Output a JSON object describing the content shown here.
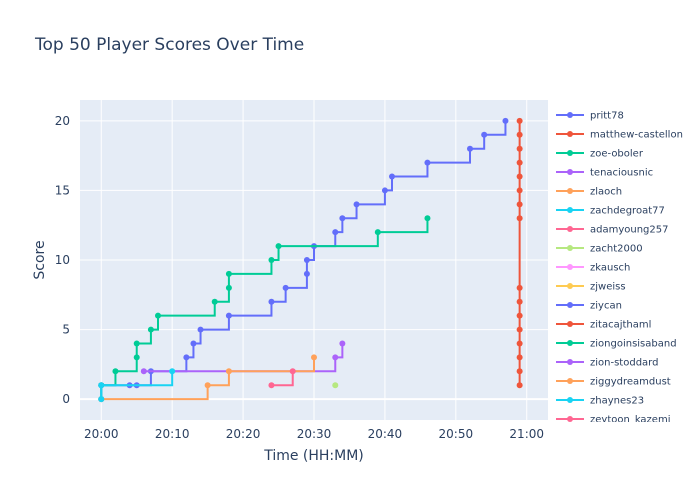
{
  "chart_data": {
    "type": "line",
    "line_shape": "step",
    "title": "Top 50 Player Scores Over Time",
    "xlabel": "Time (HH:MM)",
    "ylabel": "Score",
    "xlim": [
      "19:57",
      "21:03"
    ],
    "ylim": [
      -1.5,
      21.5
    ],
    "x_ticks": [
      "20:00",
      "20:10",
      "20:20",
      "20:30",
      "20:40",
      "20:50",
      "21:00"
    ],
    "y_ticks": [
      0,
      5,
      10,
      15,
      20
    ],
    "grid": true,
    "legend_position": "right",
    "series": [
      {
        "name": "pritt78",
        "color": "#636efa",
        "points": [
          [
            "20:00",
            0
          ],
          [
            "20:00",
            1
          ],
          [
            "20:04",
            1
          ],
          [
            "20:05",
            1
          ],
          [
            "20:07",
            2
          ],
          [
            "20:12",
            3
          ],
          [
            "20:13",
            4
          ],
          [
            "20:14",
            5
          ],
          [
            "20:18",
            6
          ],
          [
            "20:24",
            7
          ],
          [
            "20:26",
            8
          ],
          [
            "20:29",
            9
          ],
          [
            "20:29",
            10
          ],
          [
            "20:30",
            11
          ],
          [
            "20:33",
            12
          ],
          [
            "20:34",
            13
          ],
          [
            "20:36",
            14
          ],
          [
            "20:40",
            15
          ],
          [
            "20:41",
            16
          ],
          [
            "20:46",
            17
          ],
          [
            "20:52",
            18
          ],
          [
            "20:54",
            19
          ],
          [
            "20:57",
            20
          ]
        ]
      },
      {
        "name": "matthew-castellon",
        "color": "#ef553b",
        "points": [
          [
            "20:59",
            1
          ],
          [
            "20:59",
            2
          ],
          [
            "20:59",
            3
          ],
          [
            "20:59",
            4
          ],
          [
            "20:59",
            5
          ],
          [
            "20:59",
            6
          ],
          [
            "20:59",
            7
          ],
          [
            "20:59",
            8
          ],
          [
            "20:59",
            13
          ],
          [
            "20:59",
            14
          ],
          [
            "20:59",
            15
          ],
          [
            "20:59",
            16
          ],
          [
            "20:59",
            17
          ],
          [
            "20:59",
            18
          ],
          [
            "20:59",
            19
          ],
          [
            "20:59",
            20
          ]
        ]
      },
      {
        "name": "zoe-oboler",
        "color": "#00cc96",
        "points": [
          [
            "20:00",
            0
          ],
          [
            "20:00",
            1
          ],
          [
            "20:02",
            2
          ],
          [
            "20:05",
            3
          ],
          [
            "20:05",
            4
          ],
          [
            "20:07",
            5
          ],
          [
            "20:08",
            6
          ],
          [
            "20:16",
            7
          ],
          [
            "20:18",
            8
          ],
          [
            "20:18",
            9
          ],
          [
            "20:24",
            10
          ],
          [
            "20:25",
            11
          ],
          [
            "20:39",
            12
          ],
          [
            "20:46",
            13
          ]
        ]
      },
      {
        "name": "tenaciousnic",
        "color": "#ab63fa",
        "points": [
          [
            "20:06",
            2
          ],
          [
            "20:33",
            3
          ],
          [
            "20:34",
            4
          ]
        ]
      },
      {
        "name": "zlaoch",
        "color": "#ffa15a",
        "points": [
          [
            "20:00",
            0
          ],
          [
            "20:15",
            1
          ],
          [
            "20:18",
            2
          ],
          [
            "20:30",
            3
          ]
        ]
      },
      {
        "name": "zachdegroat77",
        "color": "#19d3f3",
        "points": [
          [
            "20:00",
            0
          ],
          [
            "20:00",
            1
          ],
          [
            "20:10",
            2
          ]
        ]
      },
      {
        "name": "adamyoung257",
        "color": "#ff6692",
        "points": [
          [
            "20:24",
            1
          ],
          [
            "20:27",
            2
          ]
        ]
      },
      {
        "name": "zacht2000",
        "color": "#b6e880",
        "points": [
          [
            "20:33",
            1
          ]
        ]
      },
      {
        "name": "zkausch",
        "color": "#ff97ff",
        "points": []
      },
      {
        "name": "zjweiss",
        "color": "#fecb52",
        "points": []
      },
      {
        "name": "ziycan",
        "color": "#636efa",
        "points": []
      },
      {
        "name": "zitacajthaml",
        "color": "#ef553b",
        "points": []
      },
      {
        "name": "ziongoinsisaband",
        "color": "#00cc96",
        "points": []
      },
      {
        "name": "zion-stoddard",
        "color": "#ab63fa",
        "points": []
      },
      {
        "name": "ziggydreamdust",
        "color": "#ffa15a",
        "points": []
      },
      {
        "name": "zhaynes23",
        "color": "#19d3f3",
        "points": []
      },
      {
        "name": "zeytoon_kazemi",
        "color": "#ff6692",
        "points": []
      }
    ]
  }
}
